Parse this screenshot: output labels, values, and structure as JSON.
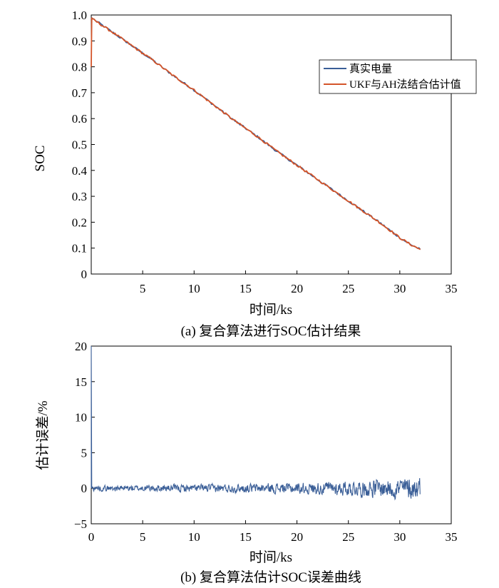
{
  "colors": {
    "true_soc": "#3a5e97",
    "ukf_ah": "#d4552a",
    "error": "#3a5e97",
    "axis": "#000000"
  },
  "chart_data": [
    {
      "type": "line",
      "panel": "a",
      "caption": "(a) 复合算法进行SOC估计结果",
      "xlabel": "时间/ks",
      "ylabel": "SOC",
      "xlim": [
        0,
        35
      ],
      "ylim": [
        0,
        1.0
      ],
      "xticks": [
        5,
        10,
        15,
        20,
        25,
        30,
        35
      ],
      "xtick_labels": [
        "5",
        "10",
        "15",
        "20",
        "25",
        "30",
        "35"
      ],
      "yticks": [
        0,
        0.1,
        0.2,
        0.3,
        0.4,
        0.5,
        0.6,
        0.7,
        0.8,
        0.9,
        1.0
      ],
      "ytick_labels": [
        "0",
        "0.1",
        "0.2",
        "0.3",
        "0.4",
        "0.5",
        "0.6",
        "0.7",
        "0.8",
        "0.9",
        "1.0"
      ],
      "legend_position": "top-right",
      "grid": false,
      "series": [
        {
          "name": "真实电量",
          "x": [
            0,
            2,
            4,
            6,
            8,
            10,
            12,
            14,
            16,
            18,
            20,
            22,
            24,
            26,
            28,
            30,
            31,
            32
          ],
          "y": [
            0.99,
            0.935,
            0.88,
            0.825,
            0.765,
            0.71,
            0.65,
            0.59,
            0.535,
            0.475,
            0.42,
            0.365,
            0.31,
            0.255,
            0.2,
            0.14,
            0.115,
            0.095
          ]
        },
        {
          "name": "UKF与AH法结合估计值",
          "x": [
            0,
            0.05,
            0.1,
            2,
            4,
            6,
            8,
            10,
            12,
            14,
            16,
            18,
            20,
            22,
            24,
            26,
            28,
            30,
            31,
            32
          ],
          "y": [
            0.8,
            0.99,
            0.985,
            0.935,
            0.88,
            0.825,
            0.765,
            0.71,
            0.65,
            0.59,
            0.535,
            0.475,
            0.42,
            0.365,
            0.31,
            0.255,
            0.2,
            0.14,
            0.115,
            0.095
          ]
        }
      ]
    },
    {
      "type": "line",
      "panel": "b",
      "caption": "(b) 复合算法估计SOC误差曲线",
      "xlabel": "时间/ks",
      "ylabel": "估计误差/%",
      "xlim": [
        0,
        35
      ],
      "ylim": [
        -5,
        20
      ],
      "xticks": [
        0,
        5,
        10,
        15,
        20,
        25,
        30,
        35
      ],
      "xtick_labels": [
        "0",
        "5",
        "10",
        "15",
        "20",
        "25",
        "30",
        "35"
      ],
      "yticks": [
        -5,
        0,
        5,
        10,
        15,
        20
      ],
      "ytick_labels": [
        "−5",
        "0",
        "5",
        "10",
        "15",
        "20"
      ],
      "grid": false,
      "series": [
        {
          "initial_spike": {
            "x": [
              0,
              0,
              0.05
            ],
            "y": [
              0,
              20,
              0
            ]
          },
          "x_range": [
            0,
            32
          ],
          "noise_amplitude": [
            {
              "x": 0,
              "amp": 0.5
            },
            {
              "x": 10,
              "amp": 0.7
            },
            {
              "x": 20,
              "amp": 1.0
            },
            {
              "x": 25,
              "amp": 1.4
            },
            {
              "x": 30,
              "amp": 2.0
            },
            {
              "x": 32,
              "amp": 2.3
            }
          ]
        }
      ]
    }
  ]
}
